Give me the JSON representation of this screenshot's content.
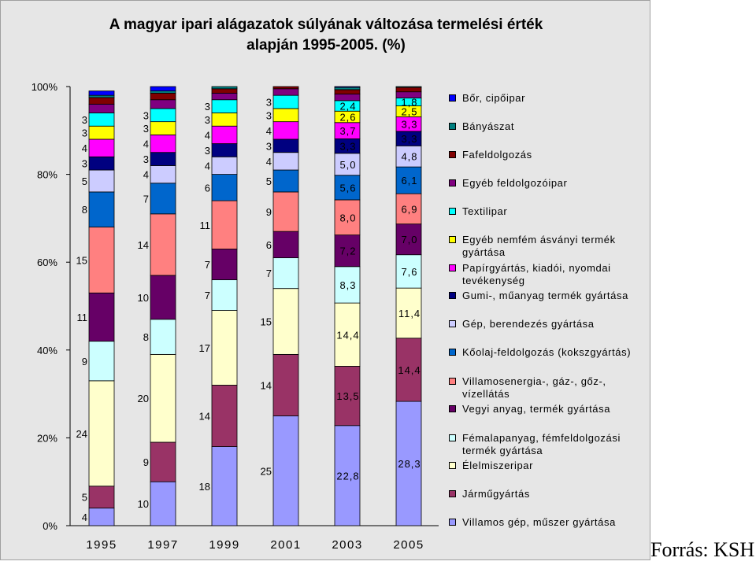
{
  "chart_data": {
    "type": "bar",
    "stacked": true,
    "title": "A magyar ipari alágazatok súlyának változása termelési érték\nalapján 1995-2005. (%)",
    "xlabel": "",
    "ylabel": "",
    "ylim": [
      0,
      100
    ],
    "yticks": [
      "0%",
      "20%",
      "40%",
      "60%",
      "80%",
      "100%"
    ],
    "grid": false,
    "legend_position": "right",
    "categories": [
      "1995",
      "1997",
      "1999",
      "2001",
      "2003",
      "2005"
    ],
    "series": [
      {
        "name": "Villamos gép, műszer gyártása",
        "color": "#9999ff",
        "values": [
          4,
          10,
          18,
          25,
          22.8,
          28.3
        ],
        "labels": [
          "4",
          "10",
          "18",
          "25",
          "22,8",
          "28,3"
        ]
      },
      {
        "name": "Járműgyártás",
        "color": "#993366",
        "values": [
          5,
          9,
          14,
          14,
          13.5,
          14.4
        ],
        "labels": [
          "5",
          "9",
          "14",
          "14",
          "13,5",
          "14,4"
        ]
      },
      {
        "name": "Élelmiszeripar",
        "color": "#ffffcc",
        "values": [
          24,
          20,
          17,
          15,
          14.4,
          11.4
        ],
        "labels": [
          "24",
          "20",
          "17",
          "15",
          "14,4",
          "11,4"
        ]
      },
      {
        "name": "Fémalapanyag, fémfeldolgozási termék gyártása",
        "color": "#ccffff",
        "values": [
          9,
          8,
          7,
          7,
          8.3,
          7.6
        ],
        "labels": [
          "9",
          "8",
          "7",
          "7",
          "8,3",
          "7,6"
        ]
      },
      {
        "name": "Vegyi anyag, termék gyártása",
        "color": "#660066",
        "values": [
          11,
          10,
          7,
          6,
          7.2,
          7.0
        ],
        "labels": [
          "11",
          "10",
          "7",
          "6",
          "7,2",
          "7,0"
        ]
      },
      {
        "name": "Villamosenergia-, gáz-, gőz-, vízellátás",
        "color": "#ff8080",
        "values": [
          15,
          14,
          11,
          9,
          8.0,
          6.9
        ],
        "labels": [
          "15",
          "14",
          "11",
          "9",
          "8,0",
          "6,9"
        ]
      },
      {
        "name": "Kőolaj-feldolgozás (kokszgyártás)",
        "color": "#0066cc",
        "values": [
          8,
          7,
          6,
          5,
          5.6,
          6.1
        ],
        "labels": [
          "8",
          "7",
          "6",
          "5",
          "5,6",
          "6,1"
        ]
      },
      {
        "name": "Gép, berendezés gyártása",
        "color": "#ccccff",
        "values": [
          5,
          4,
          4,
          4,
          5.0,
          4.8
        ],
        "labels": [
          "5",
          "4",
          "4",
          "4",
          "5,0",
          "4,8"
        ]
      },
      {
        "name": "Gumi-, műanyag termék gyártása",
        "color": "#000080",
        "values": [
          3,
          3,
          3,
          3,
          3.3,
          3.3
        ],
        "labels": [
          "3",
          "3",
          "3",
          "3",
          "3,3",
          "3,3"
        ]
      },
      {
        "name": "Papírgyártás, kiadói, nyomdai tevékenység",
        "color": "#ff00ff",
        "values": [
          4,
          4,
          4,
          4,
          3.7,
          3.3
        ],
        "labels": [
          "4",
          "4",
          "4",
          "4",
          "3,7",
          "3,3"
        ]
      },
      {
        "name": "Egyéb nemfém ásványi termék gyártása",
        "color": "#ffff00",
        "values": [
          3,
          3,
          3,
          3,
          2.6,
          2.5
        ],
        "labels": [
          "3",
          "3",
          "3",
          "3",
          "2,6",
          "2,5"
        ]
      },
      {
        "name": "Textilipar",
        "color": "#00ffff",
        "values": [
          3,
          3,
          3,
          3,
          2.4,
          1.8
        ],
        "labels": [
          "3",
          "3",
          "3",
          "3",
          "2,4",
          "1,8"
        ]
      },
      {
        "name": "Egyéb feldolgozóipar",
        "color": "#800080",
        "values": [
          2,
          2,
          1.5,
          1.5,
          1.5,
          1.4
        ],
        "labels": []
      },
      {
        "name": "Fafeldolgozás",
        "color": "#800000",
        "values": [
          1.5,
          1.5,
          1,
          1,
          1,
          1
        ],
        "labels": []
      },
      {
        "name": "Bányászat",
        "color": "#008080",
        "values": [
          0.5,
          0.5,
          0.5,
          0.5,
          0.5,
          0.5
        ],
        "labels": []
      },
      {
        "name": "Bőr, cipőipar",
        "color": "#0000ff",
        "values": [
          1,
          1,
          0.5,
          0.5,
          0.5,
          0.5
        ],
        "labels": []
      }
    ],
    "legend_order": [
      "Bőr, cipőipar",
      "Bányászat",
      "Fafeldolgozás",
      "Egyéb feldolgozóipar",
      "Textilipar",
      "Egyéb nemfém ásványi termék gyártása",
      "Papírgyártás, kiadói, nyomdai tevékenység",
      "Gumi-, műanyag termék gyártása",
      "Gép, berendezés gyártása",
      "Kőolaj-feldolgozás (kokszgyártás)",
      "Villamosenergia-, gáz-, gőz-, vízellátás",
      "Vegyi anyag, termék gyártása",
      "Fémalapanyag, fémfeldolgozási termék gyártása",
      "Élelmiszeripar",
      "Járműgyártás",
      "Villamos gép, műszer gyártása"
    ]
  },
  "source": "Forrás: KSH"
}
